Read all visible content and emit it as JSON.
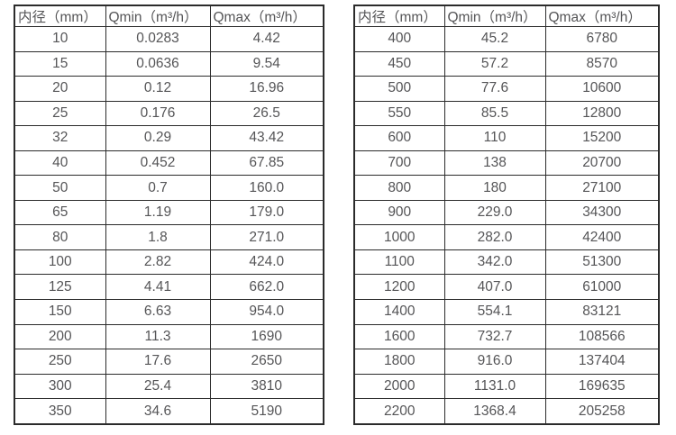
{
  "page": {
    "background_color": "#ffffff",
    "text_color": "#555557",
    "border_color": "#2b2b2b"
  },
  "tables": [
    {
      "name": "small-diameters",
      "headers": [
        "内径（mm）",
        "Qmin（m³/h）",
        "Qmax（m³/h）"
      ],
      "rows": [
        [
          "10",
          "0.0283",
          "4.42"
        ],
        [
          "15",
          "0.0636",
          "9.54"
        ],
        [
          "20",
          "0.12",
          "16.96"
        ],
        [
          "25",
          "0.176",
          "26.5"
        ],
        [
          "32",
          "0.29",
          "43.42"
        ],
        [
          "40",
          "0.452",
          "67.85"
        ],
        [
          "50",
          "0.7",
          "160.0"
        ],
        [
          "65",
          "1.19",
          "179.0"
        ],
        [
          "80",
          "1.8",
          "271.0"
        ],
        [
          "100",
          "2.82",
          "424.0"
        ],
        [
          "125",
          "4.41",
          "662.0"
        ],
        [
          "150",
          "6.63",
          "954.0"
        ],
        [
          "200",
          "11.3",
          "1690"
        ],
        [
          "250",
          "17.6",
          "2650"
        ],
        [
          "300",
          "25.4",
          "3810"
        ],
        [
          "350",
          "34.6",
          "5190"
        ]
      ]
    },
    {
      "name": "large-diameters",
      "headers": [
        "内径（mm）",
        "Qmin（m³/h）",
        "Qmax（m³/h）"
      ],
      "rows": [
        [
          "400",
          "45.2",
          "6780"
        ],
        [
          "450",
          "57.2",
          "8570"
        ],
        [
          "500",
          "77.6",
          "10600"
        ],
        [
          "550",
          "85.5",
          "12800"
        ],
        [
          "600",
          "110",
          "15200"
        ],
        [
          "700",
          "138",
          "20700"
        ],
        [
          "800",
          "180",
          "27100"
        ],
        [
          "900",
          "229.0",
          "34300"
        ],
        [
          "1000",
          "282.0",
          "42400"
        ],
        [
          "1100",
          "342.0",
          "51300"
        ],
        [
          "1200",
          "407.0",
          "61000"
        ],
        [
          "1400",
          "554.1",
          "83121"
        ],
        [
          "1600",
          "732.7",
          "108566"
        ],
        [
          "1800",
          "916.0",
          "137404"
        ],
        [
          "2000",
          "1131.0",
          "169635"
        ],
        [
          "2200",
          "1368.4",
          "205258"
        ]
      ]
    }
  ]
}
